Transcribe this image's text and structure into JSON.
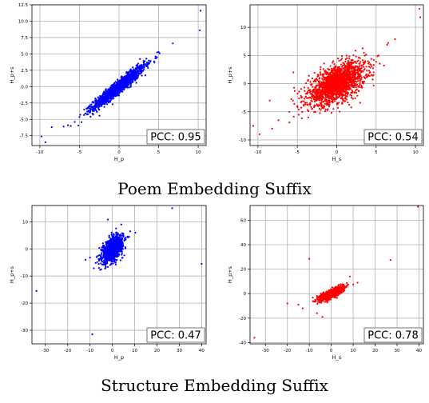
{
  "captions": {
    "poem": "Poem Embedding Suffix",
    "structure": "Structure Embedding Suffix"
  },
  "chart_data": [
    {
      "type": "scatter",
      "xlabel": "H_p",
      "ylabel": "H_p+s",
      "xlim": [
        -11,
        11
      ],
      "ylim": [
        -9,
        12.5
      ],
      "xticks": [
        -10,
        -5,
        0,
        5,
        10
      ],
      "yticks": [
        -7.5,
        -5.0,
        -2.5,
        0.0,
        2.5,
        5.0,
        7.5,
        10.0,
        12.5
      ],
      "grid": true,
      "color": "#0000ff",
      "annotation": "PCC: 0.95",
      "annotation_position": "bottom-right",
      "pcc": 0.95,
      "cluster": {
        "x_mean": 0,
        "y_mean": 0,
        "x_sd": 1.6,
        "correlation": 0.95,
        "slope": 0.95,
        "count": 1600
      },
      "outliers": [
        [
          10.3,
          11.6
        ],
        [
          10.2,
          8.6
        ],
        [
          6.8,
          6.6
        ],
        [
          -9.8,
          -7.6
        ],
        [
          -9.3,
          -8.5
        ],
        [
          -8.5,
          -6.2
        ],
        [
          -7.0,
          -6.1
        ],
        [
          -5.6,
          -5.4
        ],
        [
          -4.9,
          -4.3
        ],
        [
          -4.4,
          -3.5
        ],
        [
          -6.1,
          -6.0
        ],
        [
          5.0,
          5.3
        ],
        [
          4.6,
          4.6
        ],
        [
          -3.0,
          -1.8
        ],
        [
          -3.6,
          -4.6
        ]
      ]
    },
    {
      "type": "scatter",
      "xlabel": "H_s",
      "ylabel": "H_p+s",
      "xlim": [
        -11,
        11
      ],
      "ylim": [
        -11,
        14
      ],
      "xticks": [
        -10,
        -5,
        0,
        5,
        10
      ],
      "yticks": [
        -10,
        -5,
        0,
        5,
        10
      ],
      "grid": true,
      "color": "#ff0000",
      "annotation": "PCC: 0.54",
      "annotation_position": "bottom-right",
      "pcc": 0.54,
      "cluster": {
        "x_mean": 0,
        "y_mean": 0,
        "x_sd": 1.8,
        "correlation": 0.54,
        "slope": 0.6,
        "count": 1800
      },
      "outliers": [
        [
          10.5,
          13.3
        ],
        [
          10.6,
          11.8
        ],
        [
          7.4,
          7.9
        ],
        [
          6.4,
          6.9
        ],
        [
          -10.6,
          -7.5
        ],
        [
          -9.8,
          -9.0
        ],
        [
          -8.2,
          -8.0
        ],
        [
          -7.4,
          -6.5
        ],
        [
          -8.5,
          -3.0
        ],
        [
          -6.0,
          -6.9
        ],
        [
          -5.0,
          -4.0
        ],
        [
          5.3,
          5.0
        ],
        [
          4.7,
          4.2
        ],
        [
          -4.4,
          -2.4
        ],
        [
          -3.6,
          -6.0
        ],
        [
          6.0,
          3.2
        ],
        [
          -5.5,
          2.0
        ]
      ]
    },
    {
      "type": "scatter",
      "xlabel": "H_p",
      "ylabel": "H_p+s",
      "xlim": [
        -36,
        42
      ],
      "ylim": [
        -35,
        16
      ],
      "xticks": [
        -30,
        -20,
        -10,
        0,
        10,
        20,
        30,
        40
      ],
      "yticks": [
        -30,
        -20,
        -10,
        0,
        10
      ],
      "grid": true,
      "color": "#0000ff",
      "annotation": "PCC: 0.47",
      "annotation_position": "bottom-right",
      "pcc": 0.47,
      "cluster": {
        "x_mean": 0,
        "y_mean": 0,
        "x_sd": 2.3,
        "correlation": 0.47,
        "slope": 0.5,
        "count": 1200
      },
      "outliers": [
        [
          26.8,
          15.0
        ],
        [
          -34.0,
          -15.5
        ],
        [
          -9.0,
          -31.5
        ],
        [
          40.0,
          -5.5
        ],
        [
          -2.0,
          10.8
        ],
        [
          10.3,
          6.0
        ],
        [
          -12.0,
          -4.0
        ],
        [
          -10.0,
          -3.2
        ],
        [
          8.0,
          6.5
        ],
        [
          -5.0,
          -7.5
        ],
        [
          6.0,
          4.2
        ],
        [
          -7.5,
          -5.2
        ],
        [
          4.0,
          9.0
        ]
      ]
    },
    {
      "type": "scatter",
      "xlabel": "H_s",
      "ylabel": "H_p+s",
      "xlim": [
        -37,
        42
      ],
      "ylim": [
        -41,
        72
      ],
      "xticks": [
        -30,
        -20,
        -10,
        0,
        10,
        20,
        30,
        40
      ],
      "yticks": [
        -40,
        -20,
        0,
        20,
        40,
        60
      ],
      "grid": true,
      "color": "#ff0000",
      "annotation": "PCC: 0.78",
      "annotation_position": "bottom-right",
      "pcc": 0.78,
      "cluster": {
        "x_mean": 0,
        "y_mean": 0,
        "x_sd": 2.6,
        "correlation": 0.78,
        "slope": 0.8,
        "count": 1200
      },
      "outliers": [
        [
          39.5,
          71.0
        ],
        [
          -35.0,
          -36.0
        ],
        [
          27.0,
          27.5
        ],
        [
          -10.0,
          28.5
        ],
        [
          -15.0,
          -9.0
        ],
        [
          -13.0,
          -12.0
        ],
        [
          10.0,
          7.5
        ],
        [
          -6.5,
          -16.0
        ],
        [
          12.0,
          9.0
        ],
        [
          -20.0,
          -8.0
        ],
        [
          8.5,
          14.0
        ],
        [
          -4.0,
          -19.0
        ]
      ]
    }
  ]
}
